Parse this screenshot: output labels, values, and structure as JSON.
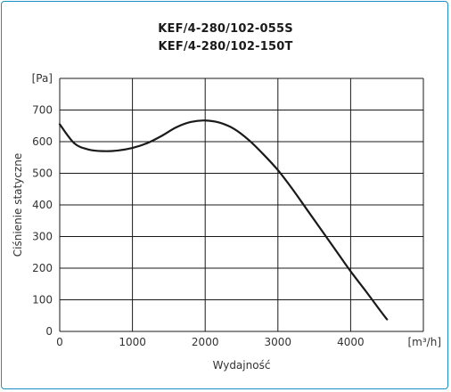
{
  "chart_data": {
    "type": "line",
    "title": "KEF/4-280/102-055S",
    "subtitle": "KEF/4-280/102-150T",
    "xlabel": "Wydajność",
    "ylabel": "Ciśnienie statyczne",
    "x_unit": "[m³/h]",
    "y_unit": "[Pa]",
    "xlim": [
      0,
      5000
    ],
    "ylim": [
      0,
      800
    ],
    "x_ticks": [
      "0",
      "1000",
      "2000",
      "3000",
      "4000"
    ],
    "y_ticks": [
      "0",
      "100",
      "200",
      "300",
      "400",
      "500",
      "600",
      "700"
    ],
    "grid": true,
    "series": [
      {
        "x": [
          0,
          200,
          400,
          600,
          800,
          1000,
          1200,
          1400,
          1600,
          1800,
          2000,
          2200,
          2400,
          2600,
          2800,
          3000,
          3200,
          3400,
          3600,
          3800,
          4000,
          4200,
          4400,
          4500
        ],
        "y": [
          655,
          595,
          575,
          570,
          572,
          580,
          595,
          618,
          645,
          662,
          667,
          660,
          640,
          605,
          560,
          510,
          450,
          385,
          320,
          255,
          190,
          130,
          68,
          38
        ],
        "color": "#1a1a1a"
      }
    ]
  }
}
